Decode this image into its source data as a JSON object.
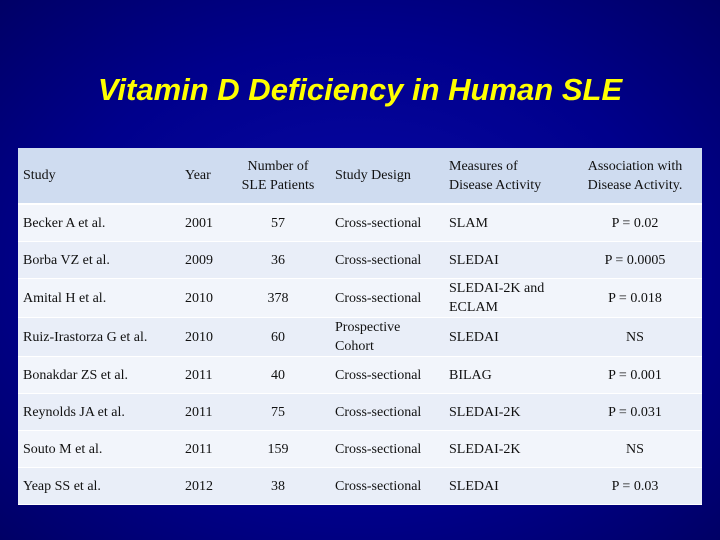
{
  "title": "Vitamin D Deficiency in Human SLE",
  "table": {
    "header": [
      "Study",
      "Year",
      "Number of\nSLE Patients",
      "Study Design",
      "Measures of\nDisease Activity",
      "Association with\nDisease Activity."
    ],
    "rows": [
      [
        "Becker A et al.",
        2001,
        57,
        "Cross-sectional",
        "SLAM",
        "P = 0.02"
      ],
      [
        "Borba VZ et al.",
        2009,
        36,
        "Cross-sectional",
        "SLEDAI",
        "P = 0.0005"
      ],
      [
        "Amital H et al.",
        2010,
        378,
        "Cross-sectional",
        "SLEDAI-2K and\nECLAM",
        "P = 0.018"
      ],
      [
        "Ruiz-Irastorza G et al.",
        2010,
        60,
        "Prospective\nCohort",
        "SLEDAI",
        "NS"
      ],
      [
        "Bonakdar ZS et al.",
        2011,
        40,
        "Cross-sectional",
        "BILAG",
        "P = 0.001"
      ],
      [
        "Reynolds JA et al.",
        2011,
        75,
        "Cross-sectional",
        "SLEDAI-2K",
        "P = 0.031"
      ],
      [
        "Souto M et al.",
        2011,
        159,
        "Cross-sectional",
        "SLEDAI-2K",
        "NS"
      ],
      [
        "Yeap SS et al.",
        2012,
        38,
        "Cross-sectional",
        "SLEDAI",
        "P = 0.03"
      ]
    ]
  }
}
